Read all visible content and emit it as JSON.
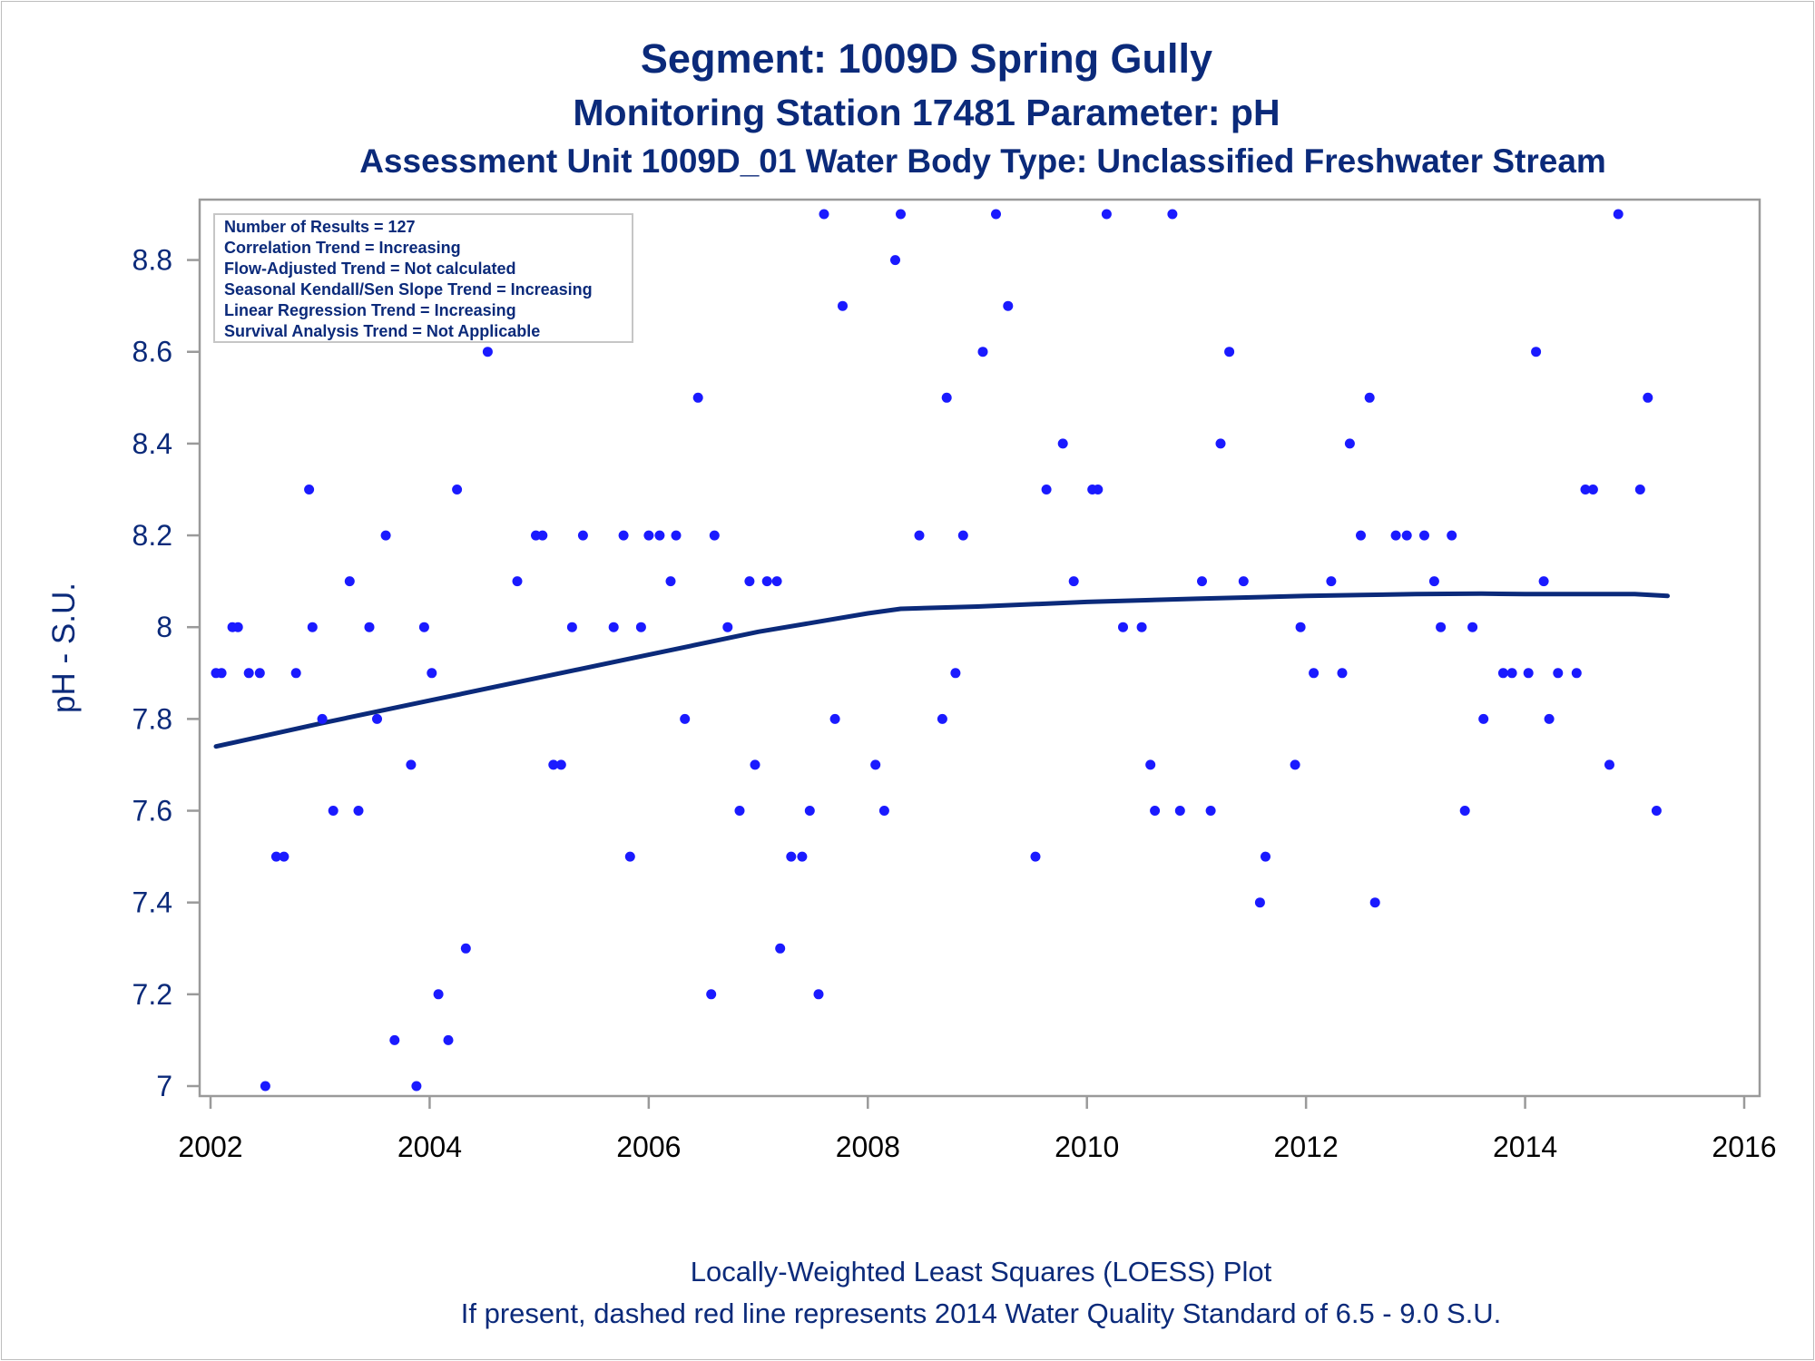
{
  "chart_data": {
    "type": "scatter",
    "title": "Segment: 1009D  Spring Gully",
    "subtitle": "Monitoring Station 17481 Parameter: pH",
    "subtitle2": "Assessment Unit 1009D_01   Water Body Type: Unclassified Freshwater Stream",
    "xlabel": "",
    "ylabel": "pH - S.U.",
    "xlim": [
      2002,
      2016
    ],
    "ylim": [
      7,
      8.9
    ],
    "xticks": [
      "2002",
      "2004",
      "2006",
      "2008",
      "2010",
      "2012",
      "2014",
      "2016"
    ],
    "yticks": [
      "7",
      "7.2",
      "7.4",
      "7.6",
      "7.8",
      "8",
      "8.2",
      "8.4",
      "8.6",
      "8.8"
    ],
    "legend_box": [
      "Number of Results = 127",
      "Correlation Trend = Increasing",
      "Flow-Adjusted Trend = Not calculated",
      "Seasonal Kendall/Sen Slope Trend = Increasing",
      "Linear Regression Trend = Increasing",
      "Survival Analysis Trend = Not Applicable"
    ],
    "footnote1": "Locally-Weighted Least Squares (LOESS) Plot",
    "footnote2": "If present, dashed red line represents 2014 Water Quality Standard of 6.5 - 9.0 S.U.",
    "points": {
      "name": "",
      "x": [
        2002.05,
        2002.1,
        2002.2,
        2002.25,
        2002.35,
        2002.45,
        2002.5,
        2002.6,
        2002.67,
        2002.78,
        2002.9,
        2002.93,
        2003.02,
        2003.12,
        2003.27,
        2003.35,
        2003.45,
        2003.52,
        2003.6,
        2003.68,
        2003.83,
        2003.88,
        2003.95,
        2004.02,
        2004.08,
        2004.17,
        2004.25,
        2004.33,
        2004.53,
        2004.8,
        2004.97,
        2005.03,
        2005.13,
        2005.2,
        2005.3,
        2005.4,
        2005.68,
        2005.77,
        2005.83,
        2005.93,
        2006.0,
        2006.1,
        2006.2,
        2006.25,
        2006.33,
        2006.45,
        2006.57,
        2006.6,
        2006.72,
        2006.83,
        2006.92,
        2006.97,
        2007.08,
        2007.17,
        2007.2,
        2007.3,
        2007.4,
        2007.47,
        2007.55,
        2007.6,
        2007.7,
        2007.77,
        2008.07,
        2008.15,
        2008.25,
        2008.3,
        2008.47,
        2008.68,
        2008.72,
        2008.8,
        2008.87,
        2009.05,
        2009.17,
        2009.28,
        2009.53,
        2009.63,
        2009.78,
        2009.88,
        2010.05,
        2010.1,
        2010.18,
        2010.33,
        2010.5,
        2010.58,
        2010.62,
        2010.78,
        2010.85,
        2011.05,
        2011.13,
        2011.22,
        2011.3,
        2011.43,
        2011.58,
        2011.63,
        2011.9,
        2011.95,
        2012.07,
        2012.23,
        2012.33,
        2012.4,
        2012.5,
        2012.58,
        2012.63,
        2012.82,
        2012.92,
        2013.08,
        2013.17,
        2013.23,
        2013.33,
        2013.45,
        2013.52,
        2013.62,
        2013.8,
        2013.88,
        2014.03,
        2014.1,
        2014.17,
        2014.22,
        2014.3,
        2014.47,
        2014.55,
        2014.62,
        2014.77,
        2014.85,
        2015.05,
        2015.12,
        2015.2
      ],
      "y": [
        7.9,
        7.9,
        8.0,
        8.0,
        7.9,
        7.9,
        7.0,
        7.5,
        7.5,
        7.9,
        8.3,
        8.0,
        7.8,
        7.6,
        8.1,
        7.6,
        8.0,
        7.8,
        8.2,
        7.1,
        7.7,
        7.0,
        8.0,
        7.9,
        7.2,
        7.1,
        8.3,
        7.3,
        8.6,
        8.1,
        8.2,
        8.2,
        7.7,
        7.7,
        8.0,
        8.2,
        8.0,
        8.2,
        7.5,
        8.0,
        8.2,
        8.2,
        8.1,
        8.2,
        7.8,
        8.5,
        7.2,
        8.2,
        8.0,
        7.6,
        8.1,
        7.7,
        8.1,
        8.1,
        7.3,
        7.5,
        7.5,
        7.6,
        7.2,
        8.9,
        7.8,
        8.7,
        7.7,
        7.6,
        8.8,
        8.9,
        8.2,
        7.8,
        8.5,
        7.9,
        8.2,
        8.6,
        8.9,
        8.7,
        7.5,
        8.3,
        8.4,
        8.1,
        8.3,
        8.3,
        8.9,
        8.0,
        8.0,
        7.7,
        7.6,
        8.9,
        7.6,
        8.1,
        7.6,
        8.4,
        8.6,
        8.1,
        7.4,
        7.5,
        7.7,
        8.0,
        7.9,
        8.1,
        7.9,
        8.4,
        8.2,
        8.5,
        7.4,
        8.2,
        8.2,
        8.2,
        8.1,
        8.0,
        8.2,
        7.6,
        8.0,
        7.8,
        7.9,
        7.9,
        7.9,
        8.6,
        8.1,
        7.8,
        7.9,
        7.9,
        8.3,
        8.3,
        7.7,
        8.9,
        8.3,
        8.5,
        7.6
      ],
      "color": "#1a1aff"
    },
    "loess": {
      "name": "",
      "x": [
        2002.05,
        2003.0,
        2004.0,
        2005.0,
        2006.0,
        2007.0,
        2007.5,
        2008.0,
        2008.3,
        2009.0,
        2010.0,
        2011.0,
        2012.0,
        2012.5,
        2013.0,
        2013.6,
        2014.0,
        2015.0,
        2015.3
      ],
      "y": [
        7.74,
        7.79,
        7.84,
        7.89,
        7.94,
        7.99,
        8.01,
        8.03,
        8.04,
        8.045,
        8.055,
        8.062,
        8.068,
        8.07,
        8.072,
        8.073,
        8.072,
        8.072,
        8.068
      ],
      "color": "#0b2a7a"
    }
  }
}
